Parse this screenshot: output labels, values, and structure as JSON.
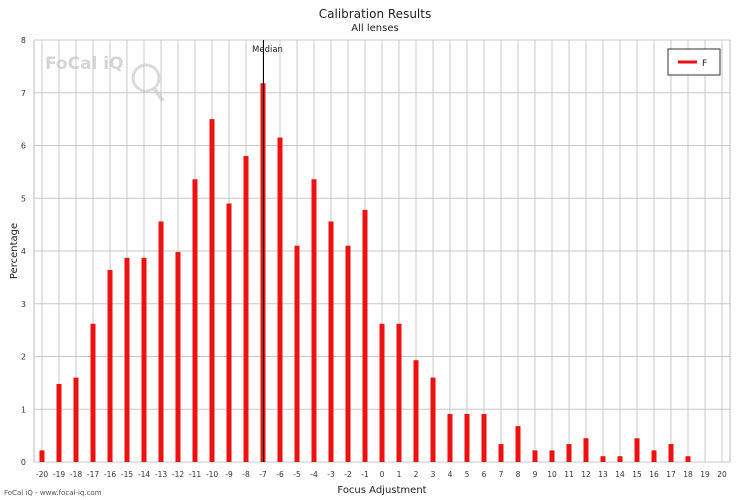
{
  "chart_data": {
    "type": "bar",
    "title": "Calibration Results",
    "subtitle": "All lenses",
    "xlabel": "Focus Adjustment",
    "ylabel": "Percentage",
    "xlim": [
      -20,
      20
    ],
    "ylim": [
      0,
      8
    ],
    "yticks": [
      0,
      1,
      2,
      3,
      4,
      5,
      6,
      7,
      8
    ],
    "grid": true,
    "legend_position": "top-right",
    "categories": [
      -20,
      -19,
      -18,
      -17,
      -16,
      -15,
      -14,
      -13,
      -12,
      -11,
      -10,
      -9,
      -8,
      -7,
      -6,
      -5,
      -4,
      -3,
      -2,
      -1,
      0,
      1,
      2,
      3,
      4,
      5,
      6,
      7,
      8,
      9,
      10,
      11,
      12,
      13,
      14,
      15,
      16,
      17,
      18,
      19,
      20
    ],
    "series": [
      {
        "name": "F",
        "color": "#ee1111",
        "values": [
          0.22,
          1.48,
          1.6,
          2.62,
          3.64,
          3.87,
          3.87,
          4.56,
          3.98,
          5.36,
          6.5,
          4.9,
          5.8,
          7.18,
          6.15,
          4.1,
          5.36,
          4.56,
          4.1,
          4.78,
          2.62,
          2.62,
          1.93,
          1.6,
          0.91,
          0.91,
          0.91,
          0.34,
          0.68,
          0.22,
          0.22,
          0.34,
          0.45,
          0.11,
          0.11,
          0.45,
          0.22,
          0.34,
          0.11,
          0,
          0
        ]
      }
    ],
    "median": {
      "label": "Median",
      "value": -7
    },
    "watermark": "FoCal iQ"
  },
  "footer": "FoCal iQ - www.focal-iq.com"
}
